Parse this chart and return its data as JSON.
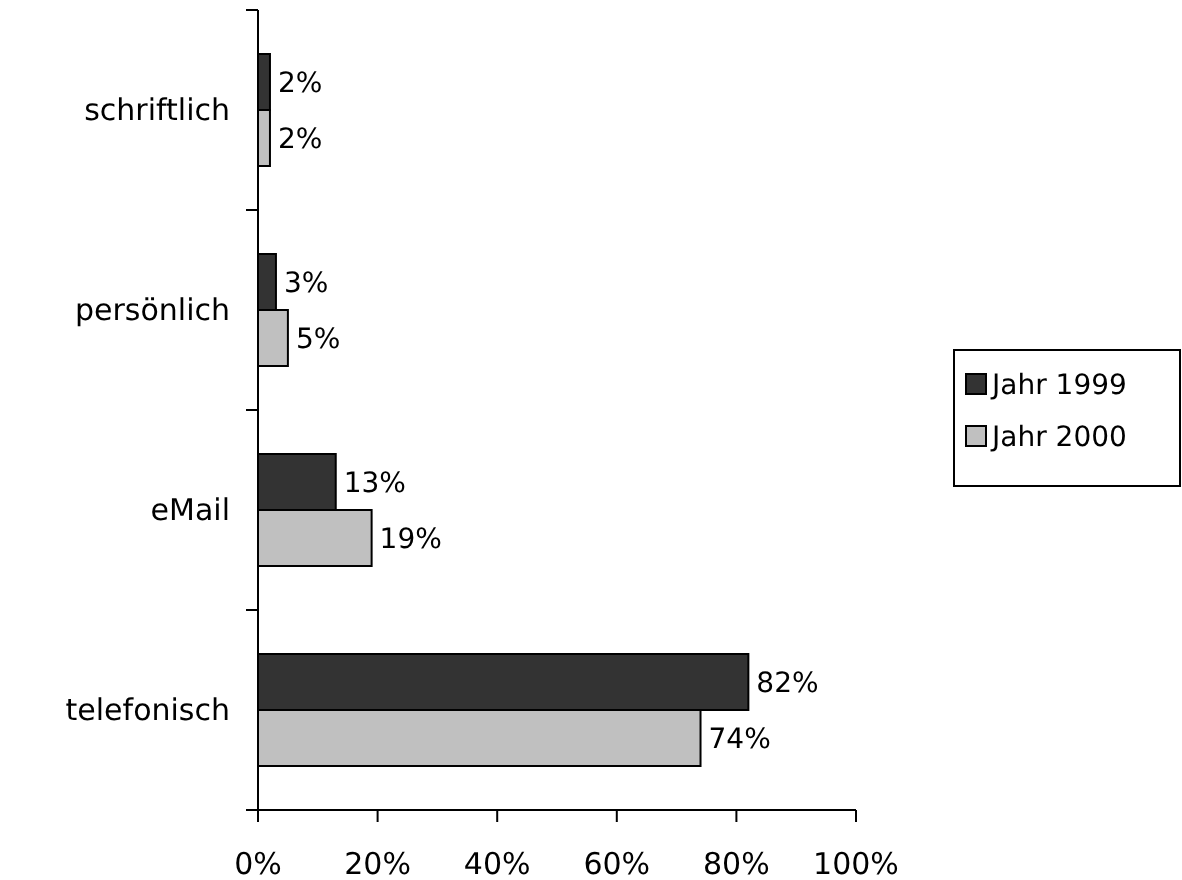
{
  "chart_data": {
    "type": "bar",
    "orientation": "horizontal",
    "categories": [
      "schriftlich",
      "persönlich",
      "eMail",
      "telefonisch"
    ],
    "series": [
      {
        "name": "Jahr 1999",
        "color": "#333333",
        "values": [
          2,
          3,
          13,
          82
        ],
        "value_labels": [
          "2%",
          "3%",
          "13%",
          "82%"
        ]
      },
      {
        "name": "Jahr 2000",
        "color": "#c0c0c0",
        "values": [
          2,
          5,
          19,
          74
        ],
        "value_labels": [
          "2%",
          "5%",
          "19%",
          "74%"
        ]
      }
    ],
    "xlim": [
      0,
      100
    ],
    "xticks": [
      {
        "value": 0,
        "label": "0%"
      },
      {
        "value": 20,
        "label": "20%"
      },
      {
        "value": 40,
        "label": "40%"
      },
      {
        "value": 60,
        "label": "60%"
      },
      {
        "value": 80,
        "label": "80%"
      },
      {
        "value": 100,
        "label": "100%"
      }
    ],
    "grid": false,
    "legend": "right"
  }
}
